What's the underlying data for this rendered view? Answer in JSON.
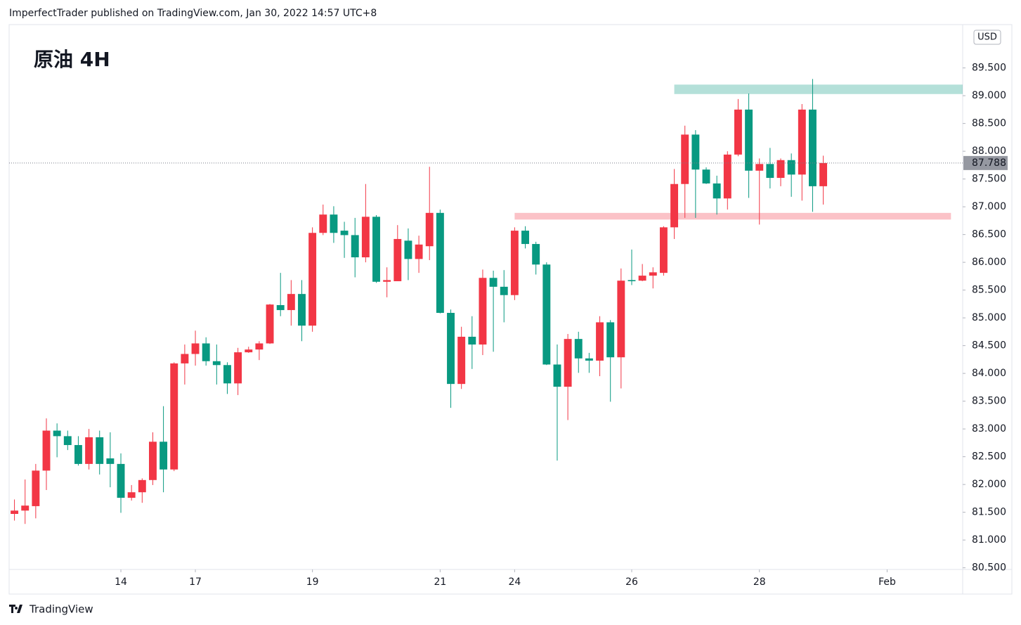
{
  "header": {
    "text": "ImperfectTrader published on TradingView.com, Jan 30, 2022 14:57 UTC+8"
  },
  "chart_data": {
    "type": "candlestick",
    "title": "原油 4H",
    "currency": "USD",
    "up_color": "#f23645",
    "down_color": "#089981",
    "x": [
      0,
      1,
      2,
      3,
      4,
      5,
      6,
      7,
      8,
      9,
      10,
      11,
      12,
      13,
      14,
      15,
      16,
      17,
      18,
      19,
      20,
      21,
      22,
      23,
      24,
      25,
      26,
      27,
      28,
      29,
      30,
      31,
      32,
      33,
      34,
      35,
      36,
      37,
      38,
      39,
      40,
      41,
      42,
      43,
      44,
      45,
      46,
      47,
      48,
      49,
      50,
      51,
      52,
      53,
      54,
      55,
      56,
      57,
      58,
      59,
      60,
      61,
      62,
      63,
      64,
      65,
      66,
      67,
      68,
      69,
      70,
      71,
      72,
      73,
      74,
      75,
      76
    ],
    "open": [
      81.47,
      81.53,
      81.61,
      82.25,
      82.97,
      82.87,
      82.71,
      82.37,
      82.85,
      82.47,
      82.37,
      81.76,
      81.86,
      82.08,
      82.77,
      82.27,
      84.18,
      84.35,
      84.54,
      84.22,
      84.15,
      83.82,
      84.38,
      84.43,
      84.54,
      85.23,
      85.14,
      85.43,
      84.86,
      86.53,
      86.86,
      86.57,
      86.49,
      86.09,
      86.82,
      85.65,
      85.66,
      86.39,
      86.06,
      86.29,
      86.89,
      85.09,
      83.81,
      84.66,
      84.52,
      85.72,
      85.56,
      85.41,
      86.57,
      86.33,
      85.96,
      84.16,
      83.76,
      84.62,
      84.27,
      84.23,
      84.92,
      84.29,
      85.68,
      85.67,
      85.76,
      85.81,
      86.63,
      87.41,
      88.3,
      87.67,
      87.42,
      87.15,
      87.94,
      88.75,
      87.65,
      87.77,
      87.52,
      87.84,
      87.58,
      88.75,
      87.37
    ],
    "high": [
      81.73,
      82.09,
      82.37,
      83.19,
      83.1,
      82.97,
      82.87,
      83.0,
      82.97,
      82.94,
      82.56,
      81.99,
      82.11,
      82.94,
      83.41,
      84.2,
      84.52,
      84.77,
      84.65,
      84.52,
      84.2,
      84.46,
      84.48,
      84.58,
      85.25,
      85.81,
      85.68,
      85.68,
      86.63,
      87.04,
      87.01,
      86.73,
      86.8,
      87.41,
      86.85,
      85.91,
      86.67,
      86.61,
      86.48,
      87.72,
      86.95,
      85.15,
      84.84,
      85.03,
      85.87,
      85.85,
      85.86,
      86.63,
      86.65,
      86.37,
      86.0,
      84.52,
      84.71,
      84.75,
      84.37,
      85.03,
      84.96,
      85.89,
      86.23,
      85.97,
      85.91,
      86.65,
      87.68,
      88.46,
      88.38,
      87.71,
      87.56,
      88.0,
      88.94,
      89.04,
      87.87,
      88.06,
      87.87,
      87.96,
      88.85,
      89.3,
      87.92
    ],
    "low": [
      81.35,
      81.29,
      81.39,
      81.9,
      82.49,
      82.62,
      82.34,
      82.27,
      82.18,
      81.95,
      81.49,
      81.71,
      81.67,
      81.99,
      81.86,
      82.24,
      83.8,
      84.14,
      84.14,
      83.8,
      83.63,
      83.61,
      84.37,
      84.24,
      84.53,
      85.03,
      84.86,
      84.58,
      84.75,
      86.49,
      86.35,
      86.08,
      85.73,
      86.0,
      85.63,
      85.37,
      85.66,
      85.68,
      85.81,
      86.04,
      85.08,
      83.38,
      83.72,
      84.08,
      84.33,
      84.39,
      84.92,
      85.32,
      86.25,
      85.78,
      84.15,
      82.43,
      83.16,
      84.01,
      84.01,
      83.95,
      83.49,
      83.73,
      85.59,
      85.66,
      85.53,
      85.76,
      86.42,
      86.8,
      86.8,
      87.41,
      86.86,
      86.95,
      87.91,
      87.16,
      86.68,
      87.33,
      87.37,
      87.18,
      87.11,
      86.91,
      87.04
    ],
    "close": [
      81.53,
      81.62,
      82.25,
      82.97,
      82.87,
      82.71,
      82.37,
      82.85,
      82.37,
      82.37,
      81.76,
      81.86,
      82.08,
      82.77,
      82.27,
      84.18,
      84.35,
      84.54,
      84.22,
      84.15,
      83.82,
      84.38,
      84.43,
      84.54,
      85.24,
      85.14,
      85.43,
      84.86,
      86.53,
      86.86,
      86.53,
      86.49,
      86.09,
      86.82,
      85.65,
      85.68,
      86.42,
      86.06,
      86.32,
      86.89,
      85.09,
      83.81,
      84.66,
      84.52,
      85.72,
      85.56,
      85.41,
      86.57,
      86.33,
      85.96,
      84.16,
      83.76,
      84.62,
      84.27,
      84.23,
      84.92,
      84.29,
      85.67,
      85.66,
      85.76,
      85.82,
      86.63,
      87.41,
      88.3,
      87.67,
      87.42,
      87.15,
      87.94,
      88.75,
      87.65,
      87.77,
      87.52,
      87.84,
      87.58,
      88.75,
      87.37,
      87.788
    ],
    "xlim": [
      -0.5,
      89.1
    ],
    "xticks": [
      {
        "value": 10,
        "label": "14"
      },
      {
        "value": 17,
        "label": "17"
      },
      {
        "value": 28,
        "label": "19"
      },
      {
        "value": 40,
        "label": "21"
      },
      {
        "value": 47,
        "label": "24"
      },
      {
        "value": 58,
        "label": "26"
      },
      {
        "value": 70,
        "label": "28"
      },
      {
        "value": 82,
        "label": "Feb"
      }
    ],
    "ylim": [
      80.47,
      90.28
    ],
    "yticks": [
      {
        "value": 80.5,
        "label": "80.500"
      },
      {
        "value": 81,
        "label": "81.000"
      },
      {
        "value": 81.5,
        "label": "81.500"
      },
      {
        "value": 82,
        "label": "82.000"
      },
      {
        "value": 82.5,
        "label": "82.500"
      },
      {
        "value": 83,
        "label": "83.000"
      },
      {
        "value": 83.5,
        "label": "83.500"
      },
      {
        "value": 84,
        "label": "84.000"
      },
      {
        "value": 84.5,
        "label": "84.500"
      },
      {
        "value": 85,
        "label": "85.000"
      },
      {
        "value": 85.5,
        "label": "85.500"
      },
      {
        "value": 86,
        "label": "86.000"
      },
      {
        "value": 86.5,
        "label": "86.500"
      },
      {
        "value": 87,
        "label": "87.000"
      },
      {
        "value": 87.5,
        "label": "87.500"
      },
      {
        "value": 88,
        "label": "88.000"
      },
      {
        "value": 88.5,
        "label": "88.500"
      },
      {
        "value": 89,
        "label": "89.000"
      },
      {
        "value": 89.5,
        "label": "89.500"
      }
    ],
    "zones": [
      {
        "low": 89.03,
        "high": 89.2,
        "from": 62,
        "to": 89.1,
        "color": "rgba(8,153,129,0.3)"
      },
      {
        "low": 86.77,
        "high": 86.89,
        "from": 47,
        "to": 88,
        "color": "rgba(242,54,69,0.3)"
      }
    ]
  },
  "footer": {
    "brand": "TradingView"
  }
}
